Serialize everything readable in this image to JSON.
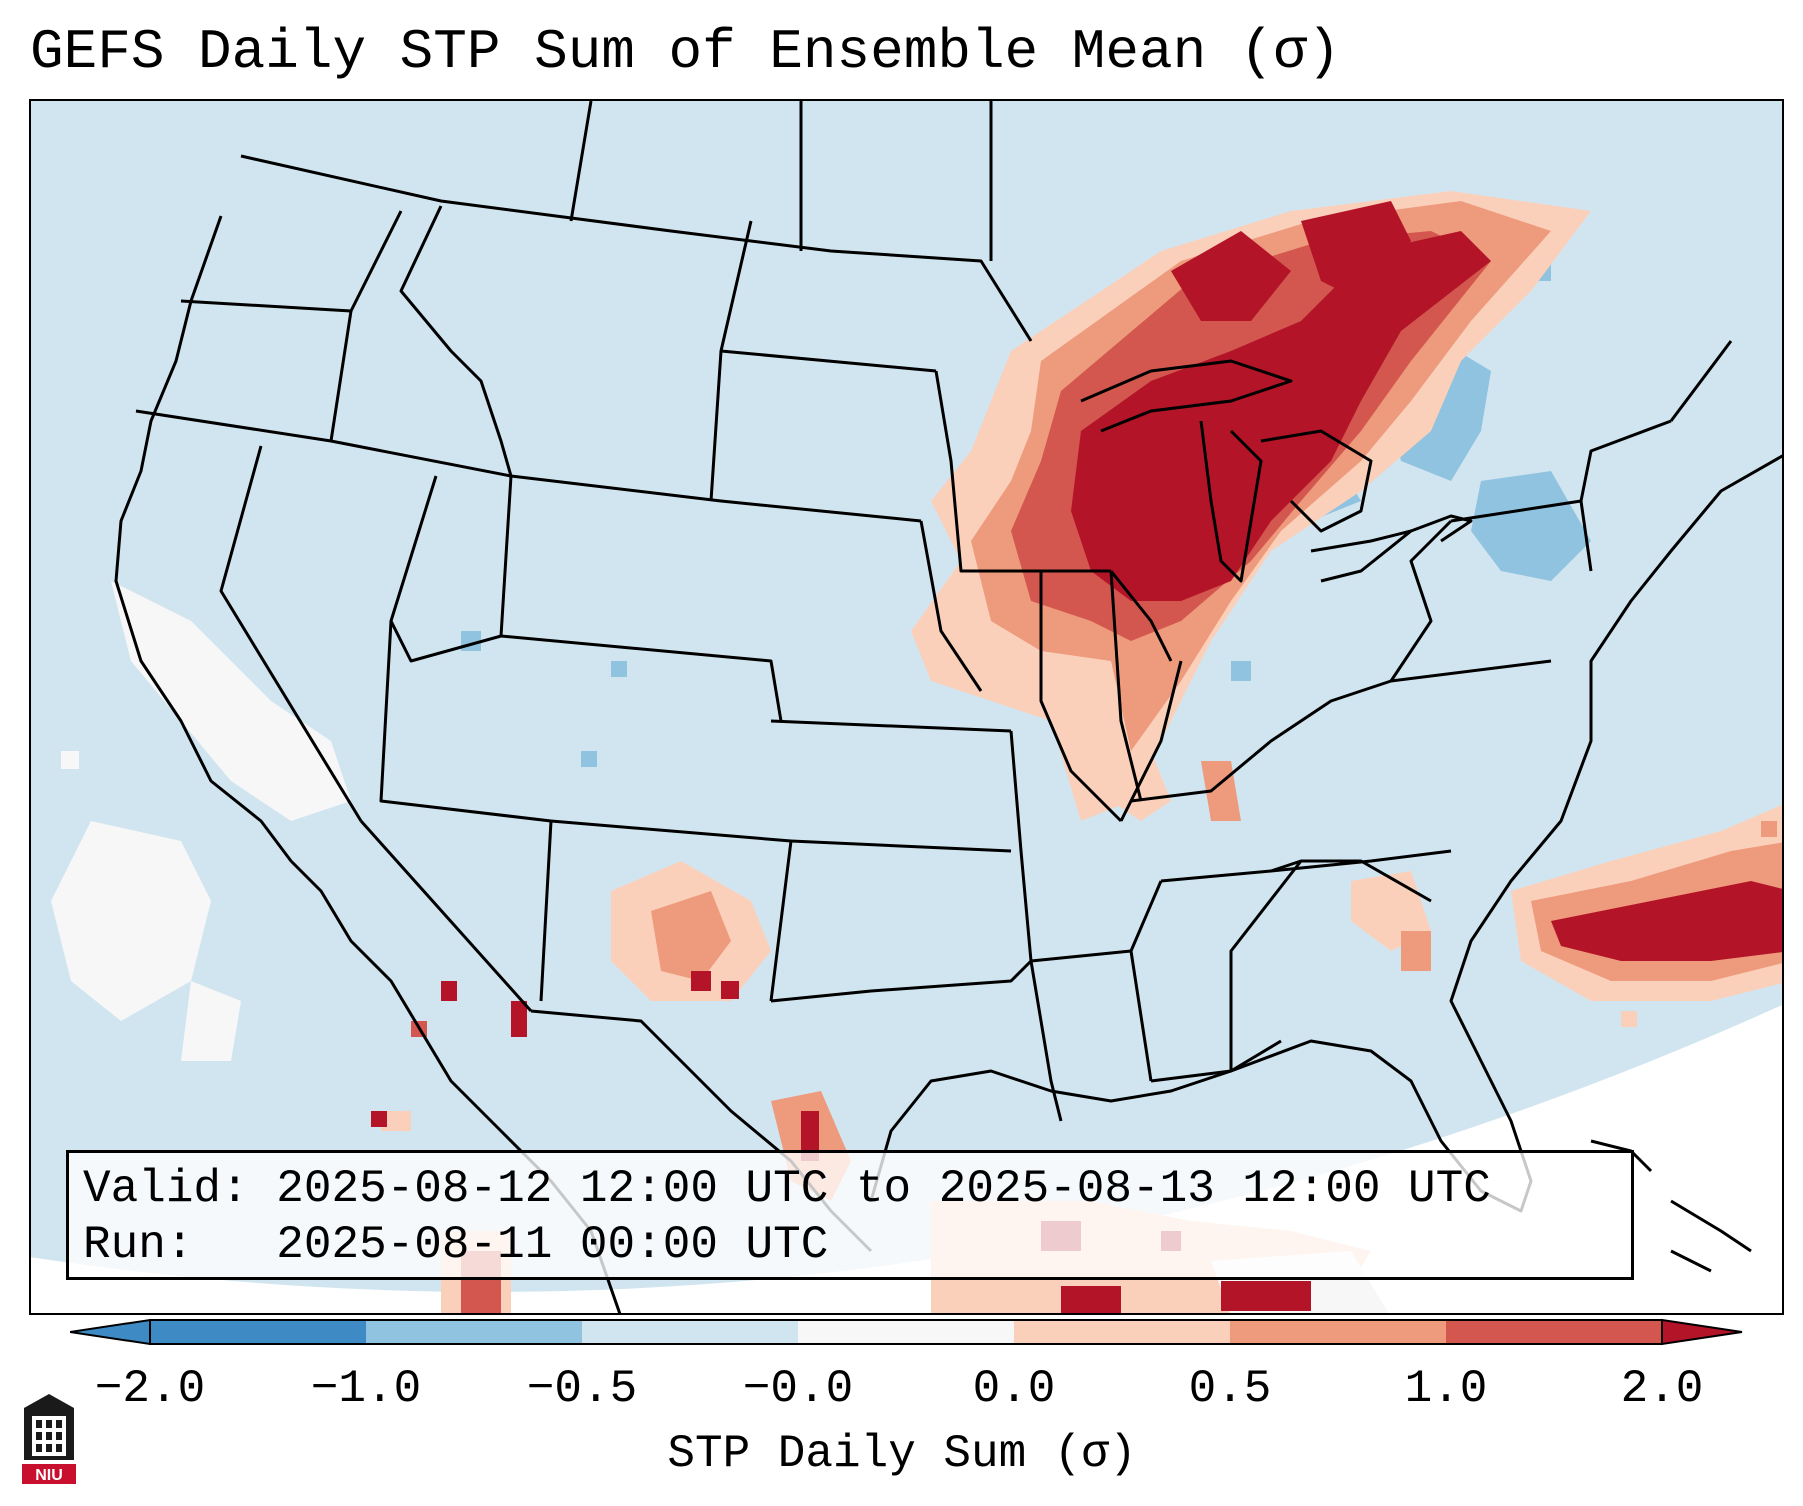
{
  "title": "GEFS Daily STP Sum of Ensemble Mean (σ)",
  "valid_label": "Valid:",
  "valid_text": "2025-08-12 12:00 UTC to 2025-08-13 12:00 UTC",
  "run_label": "Run:",
  "run_text": "2025-08-11 00:00 UTC",
  "colorbar": {
    "label": "STP Daily Sum (σ)",
    "ticks": [
      "−2.0",
      "−1.0",
      "−0.5",
      "−0.0",
      "0.0",
      "0.5",
      "1.0",
      "2.0"
    ],
    "colors": [
      "#3d8ac4",
      "#8fc3df",
      "#d1e5f0",
      "#f7f7f7",
      "#fbd0bb",
      "#ee9a7d",
      "#d3574e",
      "#b31427"
    ],
    "extend": "both"
  },
  "logo_text": "NIU",
  "map": {
    "region": "Contiguous United States",
    "features": [
      "Great Lakes / Upper Midwest maximum > 2.0σ",
      "Western Atlantic maximum > 2.0σ",
      "Southwest scattered positive values"
    ]
  }
}
